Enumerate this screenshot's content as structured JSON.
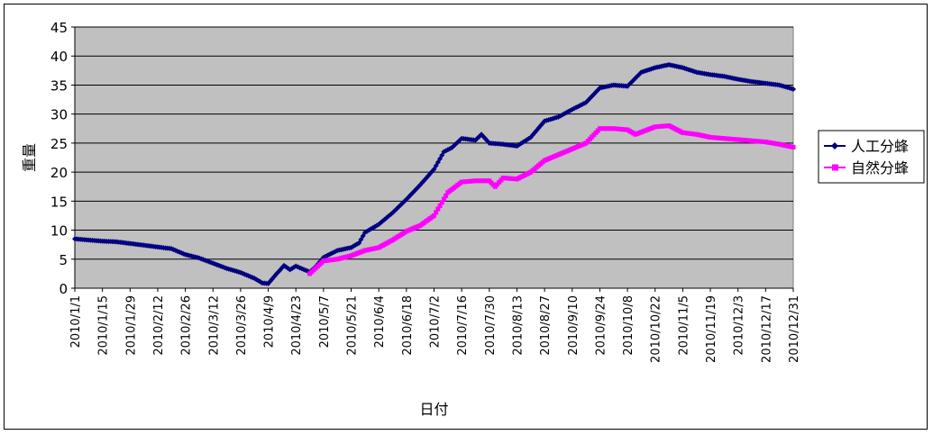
{
  "chart_data": {
    "type": "line",
    "title": "",
    "xlabel": "日付",
    "ylabel": "重量",
    "ylim": [
      0,
      45
    ],
    "yticks": [
      0,
      5,
      10,
      15,
      20,
      25,
      30,
      35,
      40,
      45
    ],
    "x_tick_labels": [
      "2010/1/1",
      "2010/1/15",
      "2010/1/29",
      "2010/2/12",
      "2010/2/26",
      "2010/3/12",
      "2010/3/26",
      "2010/4/9",
      "2010/4/23",
      "2010/5/7",
      "2010/5/21",
      "2010/6/4",
      "2010/6/18",
      "2010/7/2",
      "2010/7/16",
      "2010/7/30",
      "2010/8/13",
      "2010/8/27",
      "2010/9/10",
      "2010/9/24",
      "2010/10/8",
      "2010/10/22",
      "2010/11/5",
      "2010/11/19",
      "2010/12/3",
      "2010/12/17",
      "2010/12/31"
    ],
    "grid": true,
    "plot_background": "#c0c0c0",
    "legend_position": "right",
    "series": [
      {
        "name": "人工分蜂",
        "color": "#000080",
        "marker": "diamond",
        "points": [
          [
            "2010/1/1",
            8.5
          ],
          [
            "2010/1/8",
            8.3
          ],
          [
            "2010/1/15",
            8.1
          ],
          [
            "2010/1/22",
            8.0
          ],
          [
            "2010/1/29",
            7.7
          ],
          [
            "2010/2/5",
            7.4
          ],
          [
            "2010/2/12",
            7.1
          ],
          [
            "2010/2/19",
            6.8
          ],
          [
            "2010/2/26",
            5.8
          ],
          [
            "2010/3/5",
            5.2
          ],
          [
            "2010/3/12",
            4.3
          ],
          [
            "2010/3/19",
            3.4
          ],
          [
            "2010/3/26",
            2.7
          ],
          [
            "2010/4/2",
            1.7
          ],
          [
            "2010/4/6",
            0.9
          ],
          [
            "2010/4/9",
            0.8
          ],
          [
            "2010/4/13",
            2.4
          ],
          [
            "2010/4/17",
            3.9
          ],
          [
            "2010/4/20",
            3.2
          ],
          [
            "2010/4/23",
            3.8
          ],
          [
            "2010/4/30",
            2.8
          ],
          [
            "2010/5/3",
            3.7
          ],
          [
            "2010/5/7",
            5.3
          ],
          [
            "2010/5/14",
            6.5
          ],
          [
            "2010/5/21",
            7.0
          ],
          [
            "2010/5/25",
            7.8
          ],
          [
            "2010/5/28",
            9.6
          ],
          [
            "2010/6/4",
            11.0
          ],
          [
            "2010/6/11",
            13.0
          ],
          [
            "2010/6/18",
            15.3
          ],
          [
            "2010/6/25",
            17.8
          ],
          [
            "2010/7/2",
            20.5
          ],
          [
            "2010/7/7",
            23.5
          ],
          [
            "2010/7/11",
            24.2
          ],
          [
            "2010/7/16",
            25.8
          ],
          [
            "2010/7/23",
            25.5
          ],
          [
            "2010/7/26",
            26.5
          ],
          [
            "2010/7/30",
            25.0
          ],
          [
            "2010/8/6",
            24.8
          ],
          [
            "2010/8/13",
            24.5
          ],
          [
            "2010/8/20",
            26.0
          ],
          [
            "2010/8/27",
            28.8
          ],
          [
            "2010/9/3",
            29.5
          ],
          [
            "2010/9/10",
            30.8
          ],
          [
            "2010/9/17",
            32.0
          ],
          [
            "2010/9/24",
            34.5
          ],
          [
            "2010/10/1",
            35.0
          ],
          [
            "2010/10/8",
            34.8
          ],
          [
            "2010/10/15",
            37.2
          ],
          [
            "2010/10/22",
            38.0
          ],
          [
            "2010/10/29",
            38.5
          ],
          [
            "2010/11/5",
            38.0
          ],
          [
            "2010/11/12",
            37.2
          ],
          [
            "2010/11/19",
            36.8
          ],
          [
            "2010/11/26",
            36.5
          ],
          [
            "2010/12/3",
            36.0
          ],
          [
            "2010/12/10",
            35.6
          ],
          [
            "2010/12/17",
            35.3
          ],
          [
            "2010/12/24",
            35.0
          ],
          [
            "2010/12/31",
            34.3
          ]
        ]
      },
      {
        "name": "自然分蜂",
        "color": "#ff00ff",
        "marker": "square",
        "points": [
          [
            "2010/4/30",
            2.5
          ],
          [
            "2010/5/7",
            4.7
          ],
          [
            "2010/5/14",
            5.0
          ],
          [
            "2010/5/21",
            5.6
          ],
          [
            "2010/5/28",
            6.5
          ],
          [
            "2010/6/4",
            7.0
          ],
          [
            "2010/6/11",
            8.3
          ],
          [
            "2010/6/18",
            9.8
          ],
          [
            "2010/6/25",
            10.8
          ],
          [
            "2010/7/2",
            12.5
          ],
          [
            "2010/7/9",
            16.5
          ],
          [
            "2010/7/16",
            18.3
          ],
          [
            "2010/7/23",
            18.5
          ],
          [
            "2010/7/30",
            18.5
          ],
          [
            "2010/8/2",
            17.5
          ],
          [
            "2010/8/6",
            19.0
          ],
          [
            "2010/8/13",
            18.8
          ],
          [
            "2010/8/20",
            20.0
          ],
          [
            "2010/8/27",
            22.0
          ],
          [
            "2010/9/3",
            23.0
          ],
          [
            "2010/9/10",
            24.0
          ],
          [
            "2010/9/17",
            25.0
          ],
          [
            "2010/9/24",
            27.5
          ],
          [
            "2010/10/1",
            27.5
          ],
          [
            "2010/10/8",
            27.3
          ],
          [
            "2010/10/12",
            26.5
          ],
          [
            "2010/10/22",
            27.8
          ],
          [
            "2010/10/29",
            28.0
          ],
          [
            "2010/11/5",
            26.8
          ],
          [
            "2010/11/12",
            26.5
          ],
          [
            "2010/11/19",
            26.0
          ],
          [
            "2010/11/26",
            25.8
          ],
          [
            "2010/12/3",
            25.6
          ],
          [
            "2010/12/10",
            25.4
          ],
          [
            "2010/12/17",
            25.2
          ],
          [
            "2010/12/24",
            24.8
          ],
          [
            "2010/12/31",
            24.3
          ]
        ]
      }
    ]
  }
}
